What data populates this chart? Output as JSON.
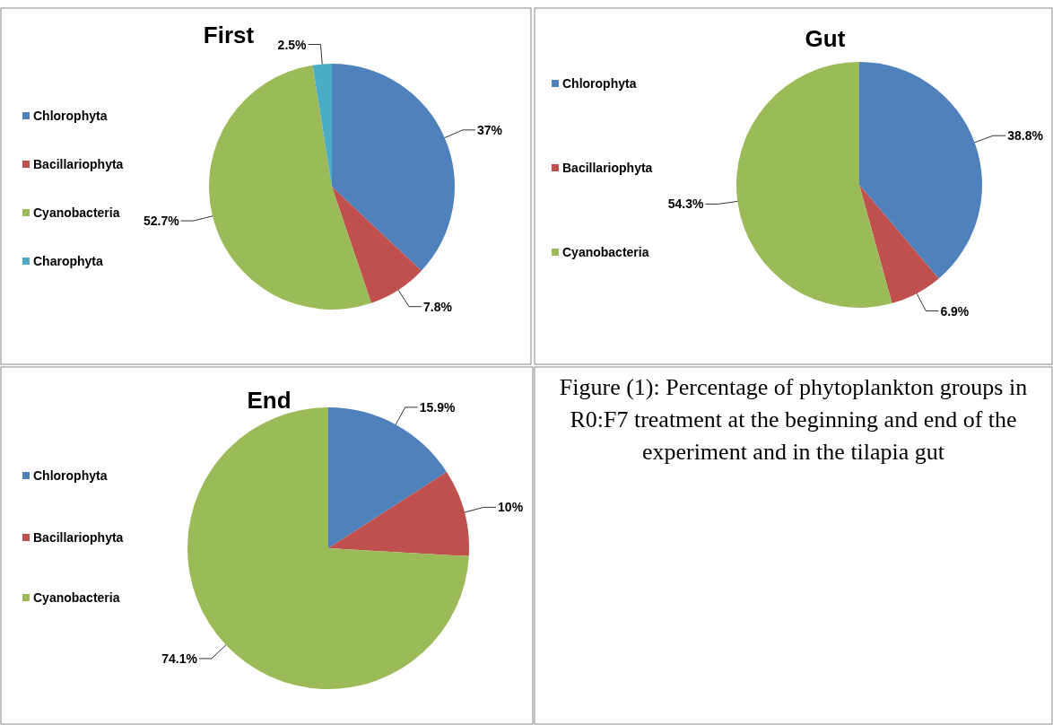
{
  "chart_data": [
    {
      "type": "pie",
      "title": "First",
      "categories": [
        "Chlorophyta",
        "Bacillariophyta",
        "Cyanobacteria",
        "Charophyta"
      ],
      "values": [
        37,
        7.8,
        52.7,
        2.5
      ],
      "value_labels": [
        "37%",
        "7.8%",
        "52.7%",
        "2.5%"
      ],
      "colors": [
        "#4f81bd",
        "#c0504d",
        "#9bbb59",
        "#4bacc6"
      ],
      "legend": "left"
    },
    {
      "type": "pie",
      "title": "Gut",
      "categories": [
        "Chlorophyta",
        "Bacillariophyta",
        "Cyanobacteria"
      ],
      "values": [
        38.8,
        6.9,
        54.3
      ],
      "value_labels": [
        "38.8%",
        "6.9%",
        "54.3%"
      ],
      "colors": [
        "#4f81bd",
        "#c0504d",
        "#9bbb59"
      ],
      "legend": "left"
    },
    {
      "type": "pie",
      "title": "End",
      "categories": [
        "Chlorophyta",
        "Bacillariophyta",
        "Cyanobacteria"
      ],
      "values": [
        15.9,
        10,
        74.1
      ],
      "value_labels": [
        "15.9%",
        "10%",
        "74.1%"
      ],
      "colors": [
        "#4f81bd",
        "#c0504d",
        "#9bbb59"
      ],
      "legend": "left"
    },
    {
      "type": "other",
      "annotations": [
        "Figure (1): Percentage of phytoplankton groups in R0:F7 treatment at the beginning and end of the experiment and in the tilapia gut"
      ]
    }
  ]
}
